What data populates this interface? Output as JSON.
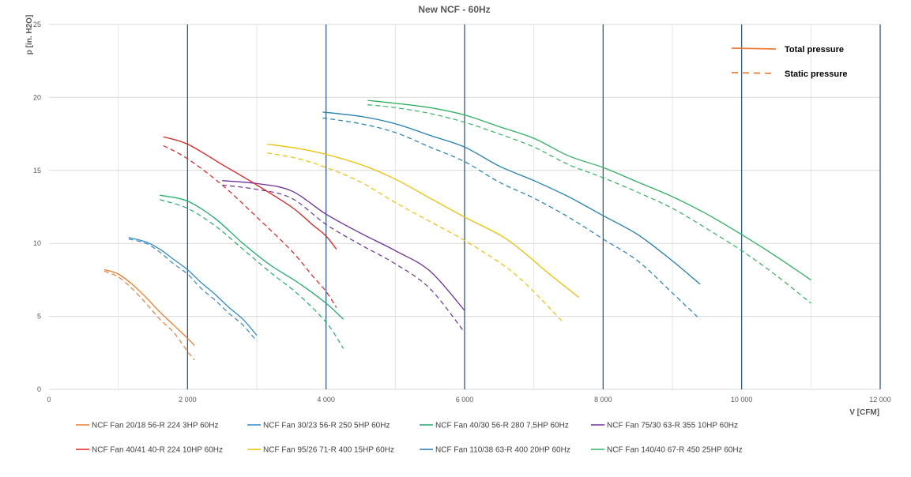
{
  "chart_data": {
    "type": "line",
    "title": "New NCF - 60Hz",
    "xlabel": "V [CFM]",
    "ylabel": "p [in. H2O]",
    "xlim": [
      0,
      12000
    ],
    "ylim": [
      0,
      25
    ],
    "x_ticks": [
      0,
      2000,
      4000,
      6000,
      8000,
      10000,
      12000
    ],
    "x_tick_labels": [
      "0",
      "2 000",
      "4 000",
      "6 000",
      "8 000",
      "10 000",
      "12 000"
    ],
    "y_ticks": [
      0,
      5,
      10,
      15,
      20,
      25
    ],
    "y_tick_labels": [
      "0",
      "5",
      "10",
      "15",
      "20",
      "25"
    ],
    "emphasized_x_lines": [
      2000,
      4000,
      6000,
      8000,
      10000,
      12000
    ],
    "grid": true,
    "legend_position": "bottom",
    "style_key": {
      "position": "top-right",
      "items": [
        {
          "label": "Total pressure",
          "dash": "solid"
        },
        {
          "label": "Static pressure",
          "dash": "dashed"
        }
      ]
    },
    "series": [
      {
        "name": "NCF Fan 20/18 56-R 224 3HP 60Hz",
        "color": "#ED7D31",
        "total": [
          [
            800,
            8.2
          ],
          [
            1000,
            7.9
          ],
          [
            1200,
            7.2
          ],
          [
            1400,
            6.3
          ],
          [
            1600,
            5.3
          ],
          [
            1800,
            4.4
          ],
          [
            2000,
            3.5
          ],
          [
            2100,
            3.0
          ]
        ],
        "static": [
          [
            800,
            8.1
          ],
          [
            1000,
            7.7
          ],
          [
            1200,
            6.9
          ],
          [
            1400,
            5.9
          ],
          [
            1600,
            4.8
          ],
          [
            1800,
            3.9
          ],
          [
            2000,
            2.6
          ],
          [
            2100,
            2.0
          ]
        ]
      },
      {
        "name": "NCF Fan 30/23 56-R 250 5HP 60Hz",
        "color": "#2E8BC9",
        "total": [
          [
            1150,
            10.4
          ],
          [
            1400,
            10.1
          ],
          [
            1600,
            9.6
          ],
          [
            1800,
            8.9
          ],
          [
            2000,
            8.2
          ],
          [
            2200,
            7.3
          ],
          [
            2400,
            6.5
          ],
          [
            2600,
            5.6
          ],
          [
            2800,
            4.8
          ],
          [
            3000,
            3.7
          ]
        ],
        "static": [
          [
            1150,
            10.3
          ],
          [
            1400,
            10.0
          ],
          [
            1600,
            9.4
          ],
          [
            1800,
            8.6
          ],
          [
            2000,
            7.9
          ],
          [
            2200,
            6.9
          ],
          [
            2400,
            6.1
          ],
          [
            2600,
            5.2
          ],
          [
            2800,
            4.4
          ],
          [
            3000,
            3.3
          ]
        ]
      },
      {
        "name": "NCF Fan 40/30 56-R 280 7,5HP 60Hz",
        "color": "#1DAE6A",
        "total": [
          [
            1600,
            13.3
          ],
          [
            2000,
            12.9
          ],
          [
            2400,
            11.7
          ],
          [
            2800,
            10.0
          ],
          [
            3200,
            8.5
          ],
          [
            3600,
            7.3
          ],
          [
            4000,
            5.9
          ],
          [
            4250,
            4.8
          ]
        ],
        "static": [
          [
            1600,
            13.0
          ],
          [
            2000,
            12.4
          ],
          [
            2400,
            11.2
          ],
          [
            2800,
            9.6
          ],
          [
            3200,
            8.0
          ],
          [
            3600,
            6.5
          ],
          [
            4000,
            4.6
          ],
          [
            4250,
            2.8
          ]
        ]
      },
      {
        "name": "NCF Fan 75/30 63-R 355 10HP 60Hz",
        "color": "#7030A0",
        "total": [
          [
            2500,
            14.3
          ],
          [
            3000,
            14.1
          ],
          [
            3500,
            13.6
          ],
          [
            4000,
            12.0
          ],
          [
            4500,
            10.7
          ],
          [
            5000,
            9.5
          ],
          [
            5500,
            8.1
          ],
          [
            6000,
            5.4
          ]
        ],
        "static": [
          [
            2500,
            14.0
          ],
          [
            3000,
            13.7
          ],
          [
            3500,
            13.1
          ],
          [
            4000,
            11.3
          ],
          [
            4500,
            9.9
          ],
          [
            5000,
            8.6
          ],
          [
            5500,
            6.9
          ],
          [
            6000,
            3.9
          ]
        ]
      },
      {
        "name": "NCF Fan 40/41 40-R 224 10HP 60Hz",
        "color": "#E02020",
        "total": [
          [
            1650,
            17.3
          ],
          [
            2000,
            16.8
          ],
          [
            2500,
            15.4
          ],
          [
            3000,
            14.0
          ],
          [
            3500,
            12.5
          ],
          [
            3800,
            11.3
          ],
          [
            4000,
            10.5
          ],
          [
            4150,
            9.6
          ]
        ],
        "static": [
          [
            1650,
            16.7
          ],
          [
            2000,
            15.8
          ],
          [
            2500,
            14.0
          ],
          [
            3000,
            11.8
          ],
          [
            3500,
            9.5
          ],
          [
            3800,
            7.8
          ],
          [
            4000,
            6.7
          ],
          [
            4150,
            5.6
          ]
        ]
      },
      {
        "name": "NCF Fan 95/26 71-R 400 15HP 60Hz",
        "color": "#F0C000",
        "total": [
          [
            3150,
            16.8
          ],
          [
            3600,
            16.5
          ],
          [
            4000,
            16.1
          ],
          [
            4500,
            15.4
          ],
          [
            5000,
            14.4
          ],
          [
            5500,
            13.1
          ],
          [
            6000,
            11.8
          ],
          [
            6500,
            10.6
          ],
          [
            6800,
            9.6
          ],
          [
            7200,
            8.0
          ],
          [
            7650,
            6.3
          ]
        ],
        "static": [
          [
            3150,
            16.2
          ],
          [
            3600,
            15.8
          ],
          [
            4000,
            15.2
          ],
          [
            4500,
            14.2
          ],
          [
            5000,
            12.8
          ],
          [
            5500,
            11.5
          ],
          [
            6000,
            10.2
          ],
          [
            6500,
            8.7
          ],
          [
            6800,
            7.6
          ],
          [
            7100,
            6.2
          ],
          [
            7400,
            4.7
          ]
        ]
      },
      {
        "name": "NCF Fan 110/38 63-R 400 20HP 60Hz",
        "color": "#1F7FB4",
        "total": [
          [
            3950,
            19.0
          ],
          [
            4500,
            18.7
          ],
          [
            5000,
            18.2
          ],
          [
            5500,
            17.4
          ],
          [
            6000,
            16.6
          ],
          [
            6500,
            15.3
          ],
          [
            7000,
            14.3
          ],
          [
            7500,
            13.2
          ],
          [
            8000,
            11.9
          ],
          [
            8500,
            10.6
          ],
          [
            9000,
            8.8
          ],
          [
            9400,
            7.2
          ]
        ],
        "static": [
          [
            3950,
            18.6
          ],
          [
            4500,
            18.2
          ],
          [
            5000,
            17.6
          ],
          [
            5500,
            16.6
          ],
          [
            6000,
            15.6
          ],
          [
            6500,
            14.2
          ],
          [
            7000,
            13.1
          ],
          [
            7500,
            11.8
          ],
          [
            8000,
            10.3
          ],
          [
            8500,
            8.8
          ],
          [
            9000,
            6.6
          ],
          [
            9400,
            4.8
          ]
        ]
      },
      {
        "name": "NCF Fan 140/40 67-R 450 25HP 60Hz",
        "color": "#2DB360",
        "total": [
          [
            4600,
            19.8
          ],
          [
            5000,
            19.6
          ],
          [
            5500,
            19.3
          ],
          [
            6000,
            18.8
          ],
          [
            6500,
            18.0
          ],
          [
            7000,
            17.2
          ],
          [
            7500,
            16.0
          ],
          [
            8000,
            15.2
          ],
          [
            8500,
            14.2
          ],
          [
            9000,
            13.2
          ],
          [
            9500,
            12.0
          ],
          [
            10000,
            10.6
          ],
          [
            10500,
            9.1
          ],
          [
            11000,
            7.5
          ]
        ],
        "static": [
          [
            4600,
            19.5
          ],
          [
            5000,
            19.3
          ],
          [
            5500,
            18.9
          ],
          [
            6000,
            18.3
          ],
          [
            6500,
            17.5
          ],
          [
            7000,
            16.6
          ],
          [
            7500,
            15.4
          ],
          [
            8000,
            14.5
          ],
          [
            8500,
            13.5
          ],
          [
            9000,
            12.4
          ],
          [
            9500,
            11.0
          ],
          [
            10000,
            9.5
          ],
          [
            10500,
            7.8
          ],
          [
            11000,
            5.9
          ]
        ]
      }
    ]
  }
}
